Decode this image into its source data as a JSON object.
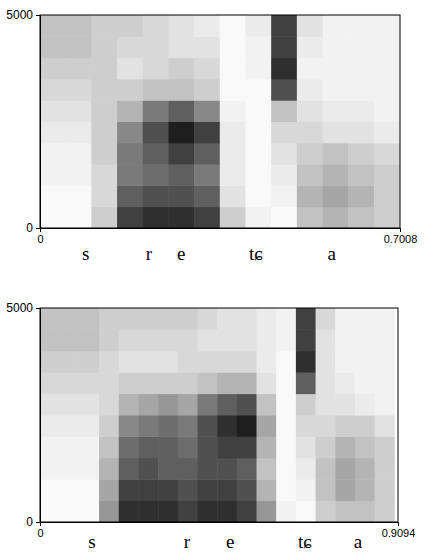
{
  "chart_data": [
    {
      "type": "heatmap",
      "xlim": [
        0,
        0.7008
      ],
      "ylim": [
        0,
        5000
      ],
      "xticks": [
        0,
        0.7008
      ],
      "yticks": [
        0,
        5000
      ],
      "x_bins": [
        0,
        0.05,
        0.1,
        0.15,
        0.2,
        0.25,
        0.3,
        0.35,
        0.4,
        0.45,
        0.5,
        0.55,
        0.6,
        0.65,
        0.7
      ],
      "y_bins": [
        0,
        500,
        1000,
        1500,
        2000,
        2500,
        3000,
        3500,
        4000,
        4500,
        5000
      ],
      "z": [
        [
          0.05,
          0.05,
          0.3,
          0.8,
          0.85,
          0.85,
          0.8,
          0.3,
          0.1,
          0.05,
          0.35,
          0.4,
          0.35,
          0.3
        ],
        [
          0.05,
          0.05,
          0.25,
          0.7,
          0.75,
          0.75,
          0.7,
          0.2,
          0.05,
          0.1,
          0.4,
          0.45,
          0.4,
          0.3
        ],
        [
          0.1,
          0.1,
          0.25,
          0.6,
          0.65,
          0.7,
          0.6,
          0.15,
          0.05,
          0.15,
          0.35,
          0.4,
          0.35,
          0.3
        ],
        [
          0.1,
          0.1,
          0.3,
          0.6,
          0.7,
          0.8,
          0.7,
          0.15,
          0.05,
          0.2,
          0.3,
          0.35,
          0.3,
          0.25
        ],
        [
          0.15,
          0.15,
          0.3,
          0.55,
          0.75,
          0.9,
          0.8,
          0.15,
          0.05,
          0.25,
          0.25,
          0.2,
          0.2,
          0.15
        ],
        [
          0.2,
          0.2,
          0.3,
          0.4,
          0.6,
          0.7,
          0.55,
          0.1,
          0.05,
          0.35,
          0.2,
          0.15,
          0.15,
          0.1
        ],
        [
          0.25,
          0.25,
          0.3,
          0.3,
          0.35,
          0.35,
          0.3,
          0.05,
          0.05,
          0.75,
          0.15,
          0.1,
          0.1,
          0.1
        ],
        [
          0.3,
          0.3,
          0.3,
          0.2,
          0.25,
          0.3,
          0.25,
          0.05,
          0.1,
          0.85,
          0.1,
          0.1,
          0.1,
          0.1
        ],
        [
          0.35,
          0.35,
          0.3,
          0.25,
          0.25,
          0.2,
          0.2,
          0.05,
          0.1,
          0.8,
          0.15,
          0.1,
          0.1,
          0.1
        ],
        [
          0.35,
          0.35,
          0.3,
          0.3,
          0.25,
          0.2,
          0.15,
          0.05,
          0.15,
          0.8,
          0.2,
          0.1,
          0.1,
          0.1
        ]
      ],
      "annotations": [
        {
          "text": "s",
          "x": 0.089
        },
        {
          "text": "r",
          "x": 0.212
        },
        {
          "text": "e",
          "x": 0.275
        },
        {
          "text": "tɕ",
          "x": 0.42
        },
        {
          "text": "a",
          "x": 0.568
        }
      ]
    },
    {
      "type": "heatmap",
      "xlim": [
        0,
        0.9094
      ],
      "ylim": [
        0,
        5000
      ],
      "xticks": [
        0,
        0.9094
      ],
      "yticks": [
        0,
        5000
      ],
      "x_bins": [
        0,
        0.05,
        0.1,
        0.15,
        0.2,
        0.25,
        0.3,
        0.35,
        0.4,
        0.45,
        0.5,
        0.55,
        0.6,
        0.65,
        0.7,
        0.75,
        0.8,
        0.85,
        0.9
      ],
      "y_bins": [
        0,
        500,
        1000,
        1500,
        2000,
        2500,
        3000,
        3500,
        4000,
        4500,
        5000
      ],
      "z": [
        [
          0.05,
          0.05,
          0.05,
          0.5,
          0.85,
          0.85,
          0.85,
          0.8,
          0.85,
          0.85,
          0.8,
          0.5,
          0.1,
          0.05,
          0.3,
          0.35,
          0.35,
          0.3
        ],
        [
          0.05,
          0.05,
          0.05,
          0.45,
          0.8,
          0.8,
          0.8,
          0.75,
          0.8,
          0.8,
          0.75,
          0.4,
          0.05,
          0.1,
          0.35,
          0.45,
          0.4,
          0.3
        ],
        [
          0.1,
          0.1,
          0.1,
          0.4,
          0.7,
          0.75,
          0.7,
          0.7,
          0.75,
          0.75,
          0.7,
          0.35,
          0.05,
          0.15,
          0.35,
          0.45,
          0.4,
          0.3
        ],
        [
          0.1,
          0.1,
          0.1,
          0.35,
          0.65,
          0.7,
          0.7,
          0.65,
          0.75,
          0.8,
          0.8,
          0.4,
          0.05,
          0.2,
          0.3,
          0.4,
          0.35,
          0.3
        ],
        [
          0.15,
          0.15,
          0.15,
          0.3,
          0.55,
          0.6,
          0.65,
          0.6,
          0.75,
          0.85,
          0.9,
          0.45,
          0.05,
          0.25,
          0.25,
          0.3,
          0.3,
          0.2
        ],
        [
          0.2,
          0.2,
          0.2,
          0.25,
          0.4,
          0.45,
          0.5,
          0.45,
          0.6,
          0.7,
          0.75,
          0.35,
          0.05,
          0.3,
          0.2,
          0.2,
          0.15,
          0.1
        ],
        [
          0.25,
          0.25,
          0.25,
          0.25,
          0.3,
          0.3,
          0.3,
          0.3,
          0.35,
          0.4,
          0.4,
          0.2,
          0.05,
          0.7,
          0.2,
          0.15,
          0.1,
          0.1
        ],
        [
          0.3,
          0.3,
          0.3,
          0.25,
          0.2,
          0.2,
          0.2,
          0.25,
          0.25,
          0.25,
          0.25,
          0.15,
          0.05,
          0.85,
          0.2,
          0.1,
          0.1,
          0.1
        ],
        [
          0.35,
          0.35,
          0.35,
          0.3,
          0.25,
          0.25,
          0.25,
          0.25,
          0.2,
          0.2,
          0.2,
          0.15,
          0.1,
          0.8,
          0.2,
          0.1,
          0.1,
          0.1
        ],
        [
          0.35,
          0.35,
          0.35,
          0.3,
          0.3,
          0.3,
          0.3,
          0.3,
          0.25,
          0.2,
          0.2,
          0.15,
          0.1,
          0.8,
          0.25,
          0.1,
          0.1,
          0.1
        ]
      ],
      "annotations": [
        {
          "text": "s",
          "x": 0.132
        },
        {
          "text": "r",
          "x": 0.373
        },
        {
          "text": "e",
          "x": 0.483
        },
        {
          "text": "tɕ",
          "x": 0.673
        },
        {
          "text": "a",
          "x": 0.808
        }
      ]
    }
  ]
}
